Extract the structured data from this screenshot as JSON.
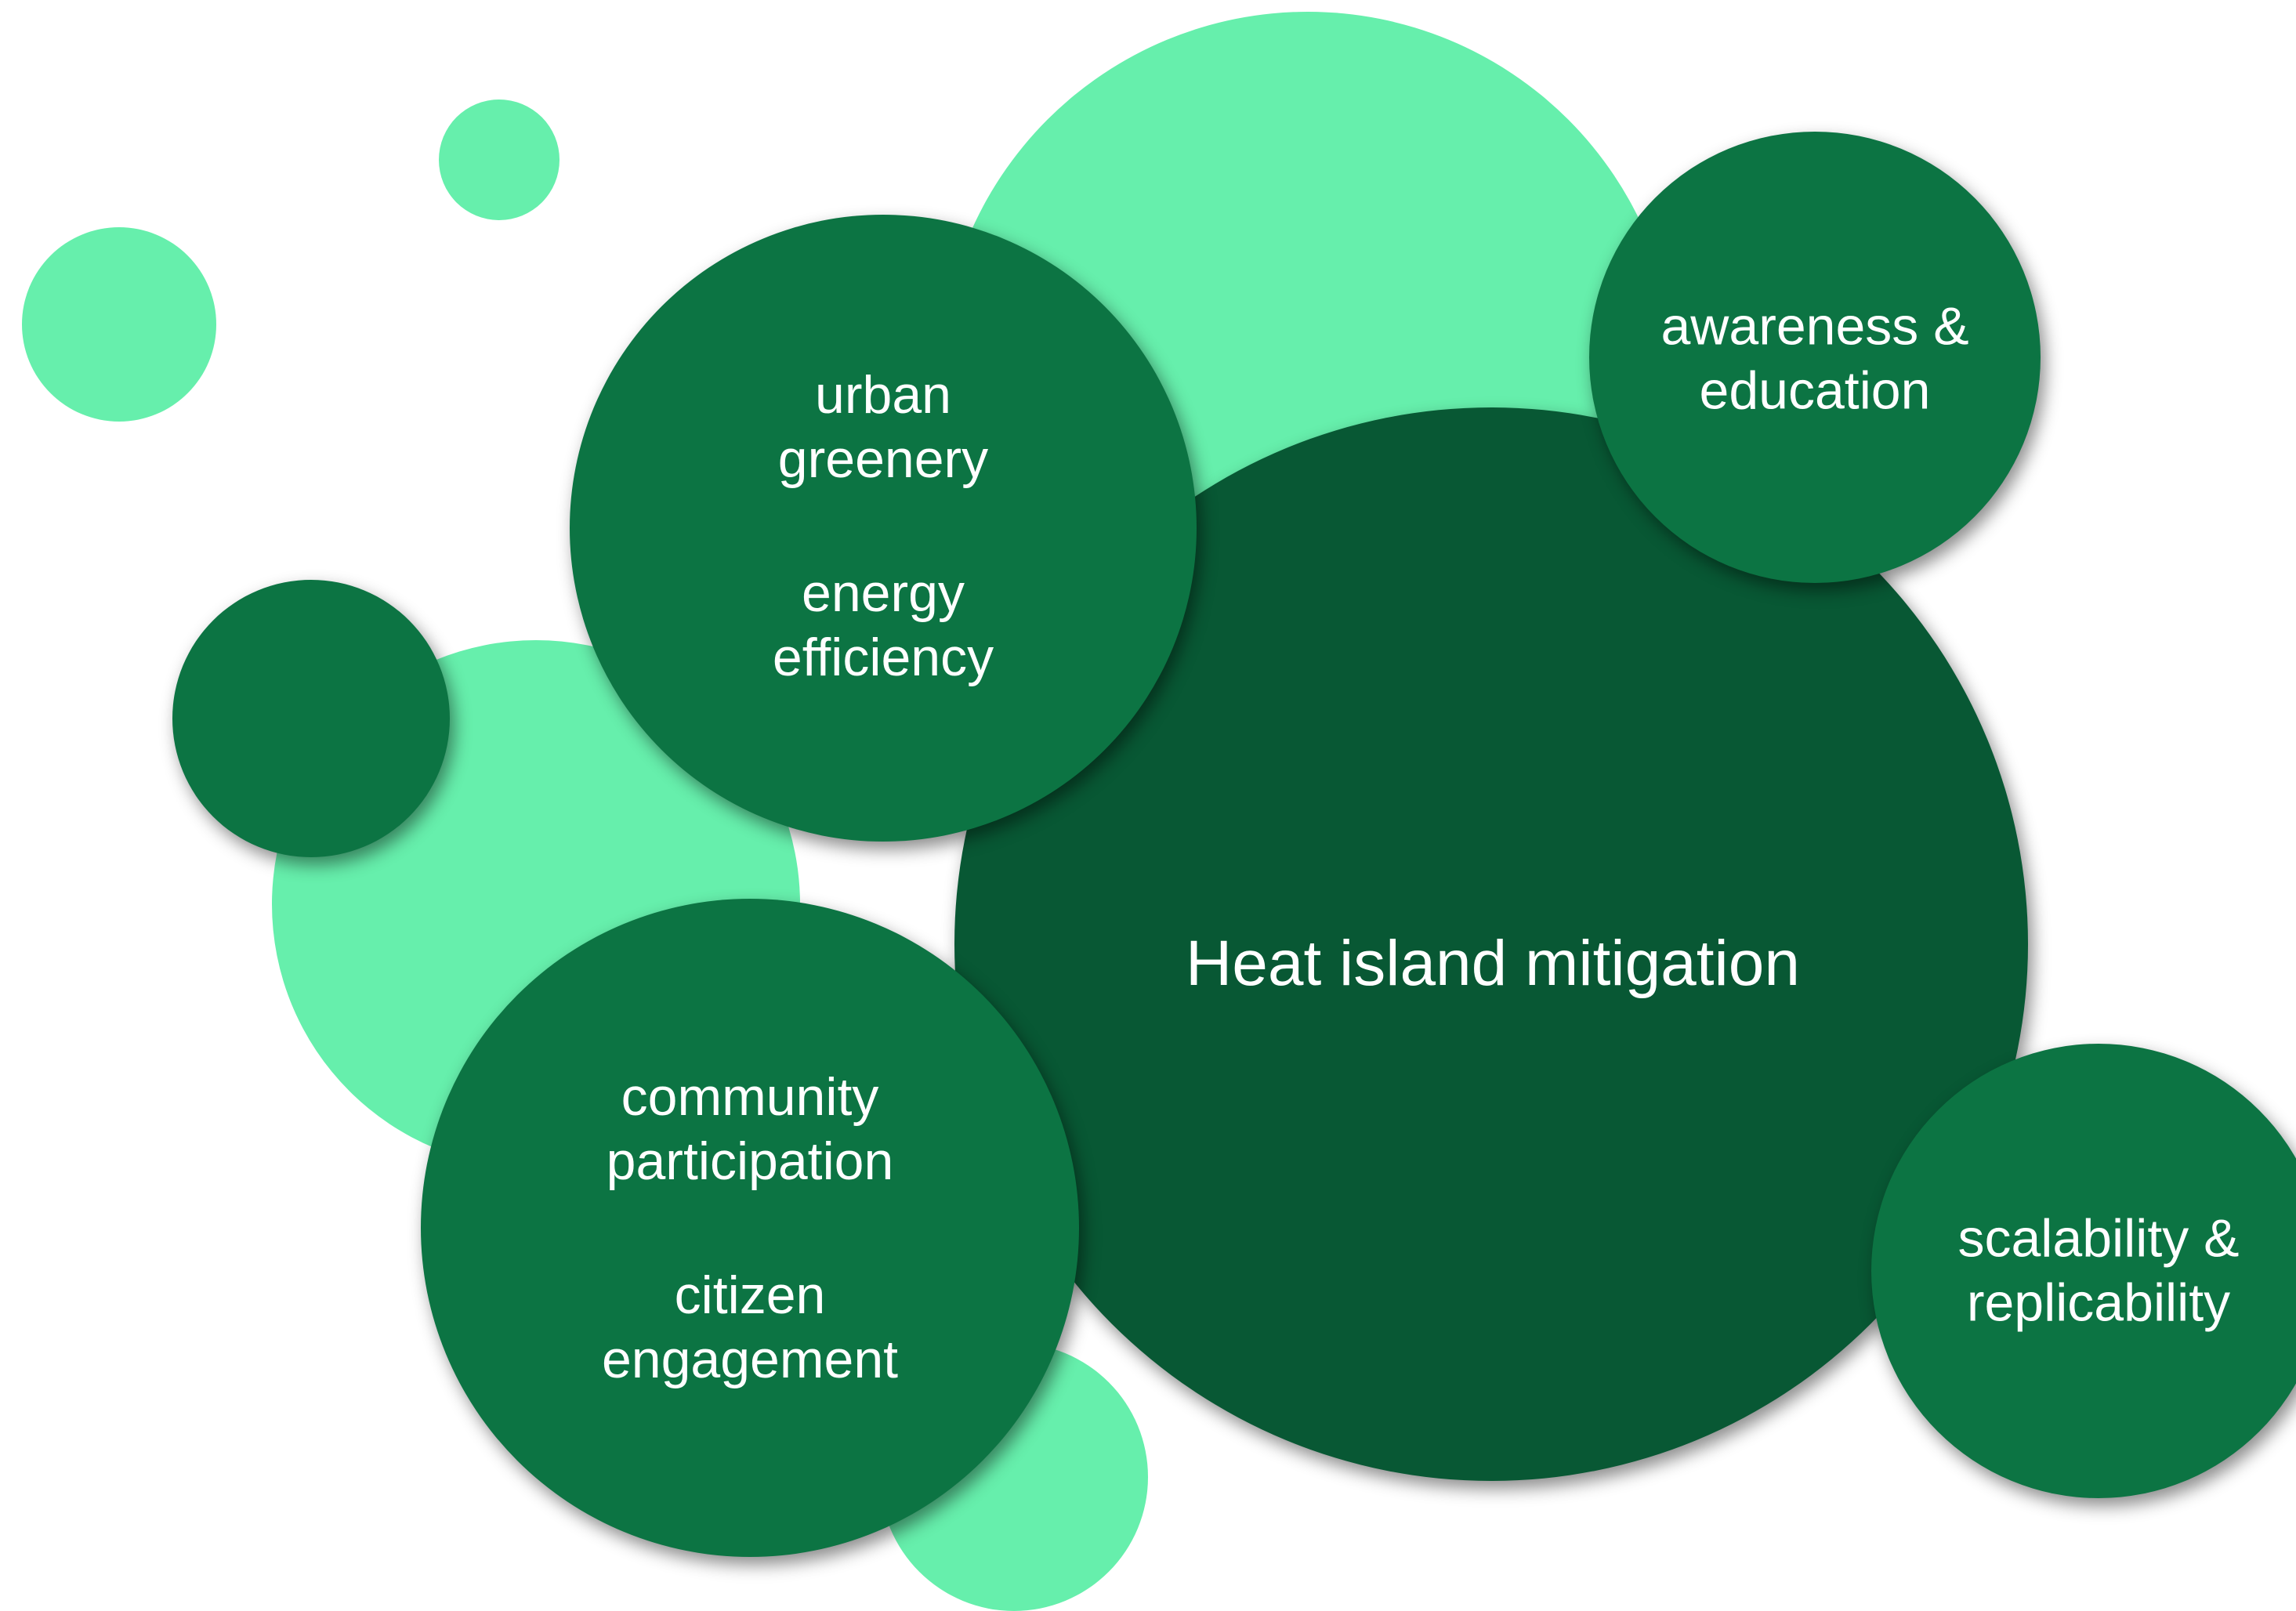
{
  "diagram": {
    "center": {
      "title": "Heat island mitigation"
    },
    "topics": {
      "greenery": {
        "line1": "urban",
        "line2": "greenery",
        "line3": "energy",
        "line4": "efficiency"
      },
      "awareness": {
        "line1": "awareness &",
        "line2": "education"
      },
      "community": {
        "line1": "community",
        "line2": "participation",
        "line3": "citizen",
        "line4": "engagement"
      },
      "scalability": {
        "line1": "scalability &",
        "line2": "replicability"
      }
    }
  },
  "colors": {
    "light_green": "#66efac",
    "dark_green": "#0c7443",
    "darkest_green": "#085834",
    "text": "#ffffff",
    "background": "#ffffff"
  }
}
